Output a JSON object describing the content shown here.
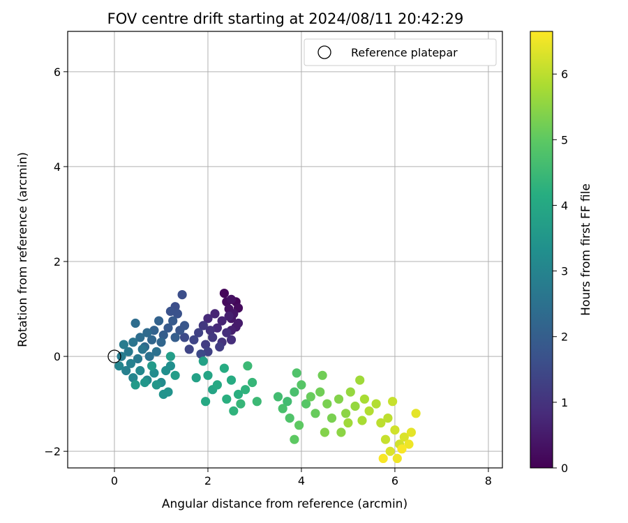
{
  "chart_data": {
    "type": "scatter",
    "title": "FOV centre drift starting at 2024/08/11 20:42:29",
    "xlabel": "Angular distance from reference (arcmin)",
    "ylabel": "Rotation from reference (arcmin)",
    "xlim": [
      -1,
      8.3
    ],
    "ylim": [
      -2.35,
      6.85
    ],
    "xticks": [
      0,
      2,
      4,
      6,
      8
    ],
    "yticks": [
      -2,
      0,
      2,
      4,
      6
    ],
    "grid": true,
    "legend": {
      "placement": "top-right",
      "entries": [
        "Reference platepar"
      ]
    },
    "colorbar": {
      "label": "Hours from first FF file",
      "range": [
        0,
        6.65
      ],
      "ticks": [
        0,
        1,
        2,
        3,
        4,
        5,
        6
      ],
      "colormap": "viridis"
    },
    "reference_point": {
      "x": 0,
      "y": 0,
      "label": "Reference platepar"
    },
    "points": [
      [
        2.35,
        1.33,
        0.1
      ],
      [
        2.6,
        1.15,
        0.1
      ],
      [
        2.65,
        1.02,
        0.2
      ],
      [
        2.4,
        1.15,
        0.2
      ],
      [
        2.5,
        1.2,
        0.3
      ],
      [
        2.45,
        1.0,
        0.3
      ],
      [
        2.55,
        0.9,
        0.4
      ],
      [
        2.5,
        0.8,
        0.4
      ],
      [
        2.65,
        0.7,
        0.5
      ],
      [
        2.6,
        0.62,
        0.5
      ],
      [
        2.45,
        0.85,
        0.6
      ],
      [
        2.5,
        0.55,
        0.6
      ],
      [
        2.3,
        0.75,
        0.7
      ],
      [
        2.15,
        0.9,
        0.7
      ],
      [
        2.0,
        0.8,
        0.8
      ],
      [
        2.2,
        0.6,
        0.8
      ],
      [
        2.4,
        0.5,
        0.9
      ],
      [
        2.5,
        0.35,
        0.9
      ],
      [
        2.3,
        0.3,
        1.0
      ],
      [
        2.05,
        0.55,
        1.0
      ],
      [
        1.9,
        0.65,
        1.1
      ],
      [
        2.1,
        0.4,
        1.1
      ],
      [
        2.25,
        0.2,
        1.2
      ],
      [
        1.95,
        0.25,
        1.2
      ],
      [
        1.8,
        0.5,
        1.3
      ],
      [
        2.0,
        0.1,
        1.3
      ],
      [
        1.7,
        0.35,
        1.4
      ],
      [
        1.6,
        0.15,
        1.4
      ],
      [
        1.85,
        0.05,
        1.5
      ],
      [
        1.5,
        0.4,
        1.5
      ],
      [
        1.45,
        1.3,
        1.6
      ],
      [
        1.3,
        1.05,
        1.6
      ],
      [
        1.2,
        0.95,
        1.7
      ],
      [
        1.35,
        0.9,
        1.7
      ],
      [
        1.5,
        0.65,
        1.8
      ],
      [
        1.4,
        0.55,
        1.8
      ],
      [
        1.25,
        0.75,
        1.9
      ],
      [
        1.15,
        0.6,
        1.9
      ],
      [
        1.3,
        0.4,
        2.0
      ],
      [
        1.05,
        0.45,
        2.0
      ],
      [
        0.95,
        0.75,
        2.1
      ],
      [
        0.85,
        0.55,
        2.1
      ],
      [
        1.0,
        0.3,
        2.2
      ],
      [
        0.8,
        0.35,
        2.2
      ],
      [
        0.7,
        0.5,
        2.3
      ],
      [
        0.65,
        0.2,
        2.3
      ],
      [
        0.45,
        0.7,
        2.4
      ],
      [
        0.55,
        0.4,
        2.4
      ],
      [
        0.9,
        0.1,
        2.5
      ],
      [
        0.75,
        0.0,
        2.5
      ],
      [
        0.6,
        0.15,
        2.6
      ],
      [
        0.4,
        0.3,
        2.6
      ],
      [
        0.3,
        0.1,
        2.7
      ],
      [
        0.5,
        -0.05,
        2.7
      ],
      [
        0.2,
        0.25,
        2.8
      ],
      [
        0.15,
        0.0,
        2.8
      ],
      [
        0.35,
        -0.15,
        2.9
      ],
      [
        0.25,
        -0.3,
        2.9
      ],
      [
        0.1,
        -0.2,
        3.0
      ],
      [
        0.4,
        -0.45,
        3.0
      ],
      [
        0.55,
        -0.3,
        3.1
      ],
      [
        0.7,
        -0.5,
        3.1
      ],
      [
        0.85,
        -0.35,
        3.2
      ],
      [
        1.0,
        -0.55,
        3.2
      ],
      [
        1.1,
        -0.3,
        3.3
      ],
      [
        1.2,
        -0.2,
        3.3
      ],
      [
        1.05,
        -0.8,
        3.4
      ],
      [
        1.15,
        -0.75,
        3.4
      ],
      [
        0.9,
        -0.6,
        3.5
      ],
      [
        0.65,
        -0.55,
        3.5
      ],
      [
        0.45,
        -0.6,
        3.6
      ],
      [
        0.8,
        -0.2,
        3.6
      ],
      [
        1.3,
        -0.4,
        3.7
      ],
      [
        1.2,
        0.0,
        3.7
      ],
      [
        1.75,
        -0.45,
        3.8
      ],
      [
        1.9,
        -0.1,
        3.8
      ],
      [
        2.0,
        -0.4,
        3.9
      ],
      [
        2.1,
        -0.7,
        3.9
      ],
      [
        1.95,
        -0.95,
        4.0
      ],
      [
        2.2,
        -0.6,
        4.0
      ],
      [
        2.35,
        -0.25,
        4.1
      ],
      [
        2.5,
        -0.5,
        4.1
      ],
      [
        2.4,
        -0.9,
        4.2
      ],
      [
        2.65,
        -0.8,
        4.2
      ],
      [
        2.55,
        -1.15,
        4.3
      ],
      [
        2.8,
        -0.7,
        4.3
      ],
      [
        2.7,
        -1.0,
        4.4
      ],
      [
        2.95,
        -0.55,
        4.4
      ],
      [
        3.05,
        -0.95,
        4.5
      ],
      [
        2.85,
        -0.2,
        4.5
      ],
      [
        3.5,
        -0.85,
        4.6
      ],
      [
        3.7,
        -0.95,
        4.6
      ],
      [
        3.6,
        -1.1,
        4.7
      ],
      [
        3.85,
        -0.75,
        4.7
      ],
      [
        3.75,
        -1.3,
        4.8
      ],
      [
        3.9,
        -0.35,
        4.8
      ],
      [
        4.0,
        -0.6,
        4.9
      ],
      [
        4.1,
        -1.0,
        4.9
      ],
      [
        3.95,
        -1.45,
        5.0
      ],
      [
        3.85,
        -1.75,
        5.0
      ],
      [
        4.2,
        -0.85,
        5.1
      ],
      [
        4.3,
        -1.2,
        5.1
      ],
      [
        4.45,
        -0.4,
        5.2
      ],
      [
        4.4,
        -0.75,
        5.2
      ],
      [
        4.55,
        -1.0,
        5.3
      ],
      [
        4.65,
        -1.3,
        5.3
      ],
      [
        4.5,
        -1.6,
        5.4
      ],
      [
        4.8,
        -0.9,
        5.4
      ],
      [
        4.95,
        -1.2,
        5.5
      ],
      [
        4.85,
        -1.6,
        5.5
      ],
      [
        5.05,
        -0.75,
        5.6
      ],
      [
        5.15,
        -1.05,
        5.6
      ],
      [
        5.0,
        -1.4,
        5.7
      ],
      [
        5.25,
        -0.5,
        5.7
      ],
      [
        5.35,
        -0.9,
        5.8
      ],
      [
        5.3,
        -1.35,
        5.8
      ],
      [
        5.45,
        -1.15,
        5.9
      ],
      [
        5.6,
        -1.0,
        5.9
      ],
      [
        5.7,
        -1.4,
        6.0
      ],
      [
        5.85,
        -1.3,
        6.0
      ],
      [
        5.95,
        -0.95,
        6.1
      ],
      [
        5.8,
        -1.75,
        6.1
      ],
      [
        6.0,
        -1.55,
        6.2
      ],
      [
        6.1,
        -1.85,
        6.2
      ],
      [
        5.9,
        -2.0,
        6.3
      ],
      [
        6.2,
        -1.7,
        6.3
      ],
      [
        6.35,
        -1.6,
        6.4
      ],
      [
        6.45,
        -1.2,
        6.4
      ],
      [
        6.3,
        -1.85,
        6.5
      ],
      [
        6.05,
        -2.15,
        6.5
      ],
      [
        5.75,
        -2.15,
        6.6
      ],
      [
        6.15,
        -1.95,
        6.6
      ]
    ]
  }
}
